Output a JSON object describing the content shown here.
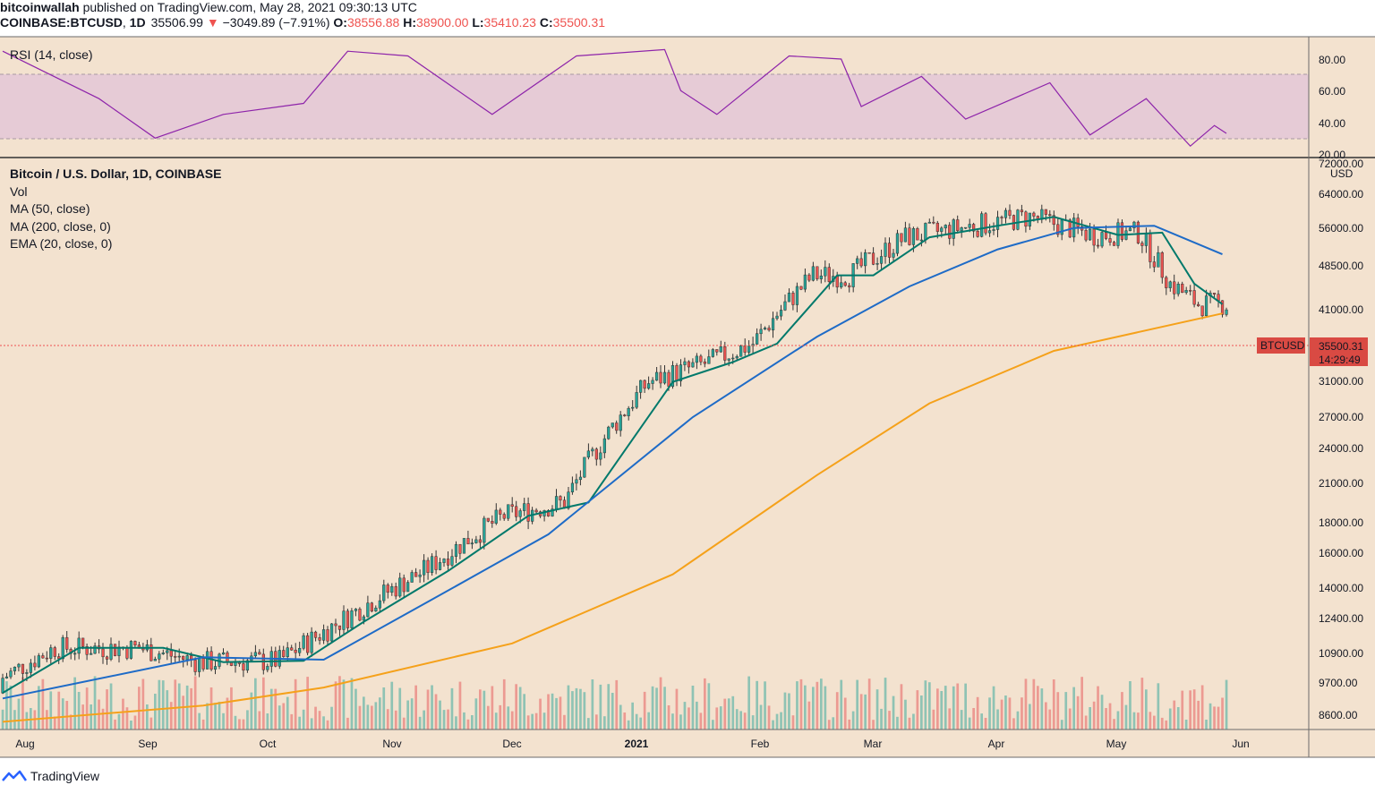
{
  "header": {
    "author": "bitcoinwallah",
    "published_text": "published on TradingView.com, May 28, 2021 09:30:13 UTC",
    "symbol": "COINBASE:BTCUSD",
    "interval": "1D",
    "last": "35506.99",
    "change": "−3049.89 (−7.91%)",
    "o_label": "O:",
    "o_value": "38556.88",
    "h_label": "H:",
    "h_value": "38900.00",
    "l_label": "L:",
    "l_value": "35410.23",
    "c_label": "C:",
    "c_value": "35500.31"
  },
  "rsi_panel": {
    "label": "RSI (14, close)",
    "ticks": [
      "80.00",
      "60.00",
      "40.00",
      "20.00"
    ]
  },
  "price_panel": {
    "title": "Bitcoin / U.S. Dollar, 1D, COINBASE",
    "indicators": [
      "Vol",
      "MA (50, close)",
      "MA (200, close, 0)",
      "EMA (20, close, 0)"
    ],
    "currency": "USD",
    "price_ticks": [
      "72000.00",
      "64000.00",
      "56000.00",
      "48500.00",
      "41000.00",
      "31000.00",
      "27000.00",
      "24000.00",
      "21000.00",
      "18000.00",
      "16000.00",
      "14000.00",
      "12400.00",
      "10900.00",
      "9700.00",
      "8600.00"
    ],
    "last_price_tag": "BTCUSD",
    "last_price": "35500.31",
    "countdown": "14:29:49"
  },
  "time_axis": {
    "labels": [
      "Aug",
      "Sep",
      "Oct",
      "Nov",
      "Dec",
      "2021",
      "Feb",
      "Mar",
      "Apr",
      "May",
      "Jun"
    ]
  },
  "footer": {
    "brand": "TradingView"
  },
  "colors": {
    "background": "#f3e2cf",
    "rsi_band": "#e6cbd6",
    "rsi_line": "#8e24aa",
    "up": "#26a69a",
    "down": "#ef5350",
    "ema20": "#00796b",
    "ma50": "#1e6bc7",
    "ma200": "#f5a11a",
    "vol_up": "#8fc3b4",
    "vol_down": "#ec9a92",
    "price_line": "#ef5350"
  },
  "chart_data": {
    "type": "candlestick",
    "symbol": "COINBASE:BTCUSD",
    "interval": "1D",
    "scale": "log",
    "x_range": [
      "2020-07-27",
      "2021-05-28"
    ],
    "y_range": [
      8000,
      72000
    ],
    "grid": false,
    "series": [
      {
        "name": "EMA (20, close, 0)",
        "points": [
          [
            "2020-07-27",
            9500
          ],
          [
            "2020-08-15",
            11300
          ],
          [
            "2020-09-05",
            11300
          ],
          [
            "2020-09-20",
            10700
          ],
          [
            "2020-10-10",
            10750
          ],
          [
            "2020-10-25",
            12500
          ],
          [
            "2020-11-15",
            15200
          ],
          [
            "2020-12-05",
            18800
          ],
          [
            "2020-12-20",
            19800
          ],
          [
            "2021-01-10",
            31500
          ],
          [
            "2021-01-25",
            34000
          ],
          [
            "2021-02-05",
            36500
          ],
          [
            "2021-02-20",
            47500
          ],
          [
            "2021-03-01",
            47500
          ],
          [
            "2021-03-15",
            55000
          ],
          [
            "2021-04-01",
            57500
          ],
          [
            "2021-04-15",
            59500
          ],
          [
            "2021-05-01",
            55500
          ],
          [
            "2021-05-12",
            56000
          ],
          [
            "2021-05-20",
            46000
          ],
          [
            "2021-05-27",
            42500
          ]
        ]
      },
      {
        "name": "MA (50, close)",
        "points": [
          [
            "2020-07-27",
            9300
          ],
          [
            "2020-09-15",
            10900
          ],
          [
            "2020-10-15",
            10800
          ],
          [
            "2020-11-10",
            13500
          ],
          [
            "2020-12-10",
            17500
          ],
          [
            "2021-01-15",
            27500
          ],
          [
            "2021-02-15",
            37500
          ],
          [
            "2021-03-10",
            45500
          ],
          [
            "2021-04-01",
            52500
          ],
          [
            "2021-04-20",
            57000
          ],
          [
            "2021-05-10",
            57500
          ],
          [
            "2021-05-27",
            51500
          ]
        ]
      },
      {
        "name": "MA (200, close, 0)",
        "points": [
          [
            "2020-07-27",
            8500
          ],
          [
            "2020-09-15",
            9050
          ],
          [
            "2020-10-15",
            9700
          ],
          [
            "2020-12-01",
            11500
          ],
          [
            "2021-01-10",
            15000
          ],
          [
            "2021-02-15",
            22000
          ],
          [
            "2021-03-15",
            29000
          ],
          [
            "2021-04-15",
            35500
          ],
          [
            "2021-05-27",
            41000
          ]
        ]
      },
      {
        "name": "RSI (14, close)",
        "points": [
          [
            "2020-07-27",
            85
          ],
          [
            "2020-08-20",
            55
          ],
          [
            "2020-09-03",
            30
          ],
          [
            "2020-09-20",
            45
          ],
          [
            "2020-10-10",
            52
          ],
          [
            "2020-10-21",
            85
          ],
          [
            "2020-11-05",
            82
          ],
          [
            "2020-11-26",
            45
          ],
          [
            "2020-12-17",
            82
          ],
          [
            "2021-01-08",
            86
          ],
          [
            "2021-01-12",
            60
          ],
          [
            "2021-01-21",
            45
          ],
          [
            "2021-02-08",
            82
          ],
          [
            "2021-02-21",
            80
          ],
          [
            "2021-02-26",
            50
          ],
          [
            "2021-03-13",
            69
          ],
          [
            "2021-03-24",
            42
          ],
          [
            "2021-04-14",
            65
          ],
          [
            "2021-04-24",
            32
          ],
          [
            "2021-05-08",
            55
          ],
          [
            "2021-05-19",
            25
          ],
          [
            "2021-05-25",
            38
          ],
          [
            "2021-05-28",
            33
          ]
        ]
      }
    ],
    "last_close": 35500.31
  }
}
